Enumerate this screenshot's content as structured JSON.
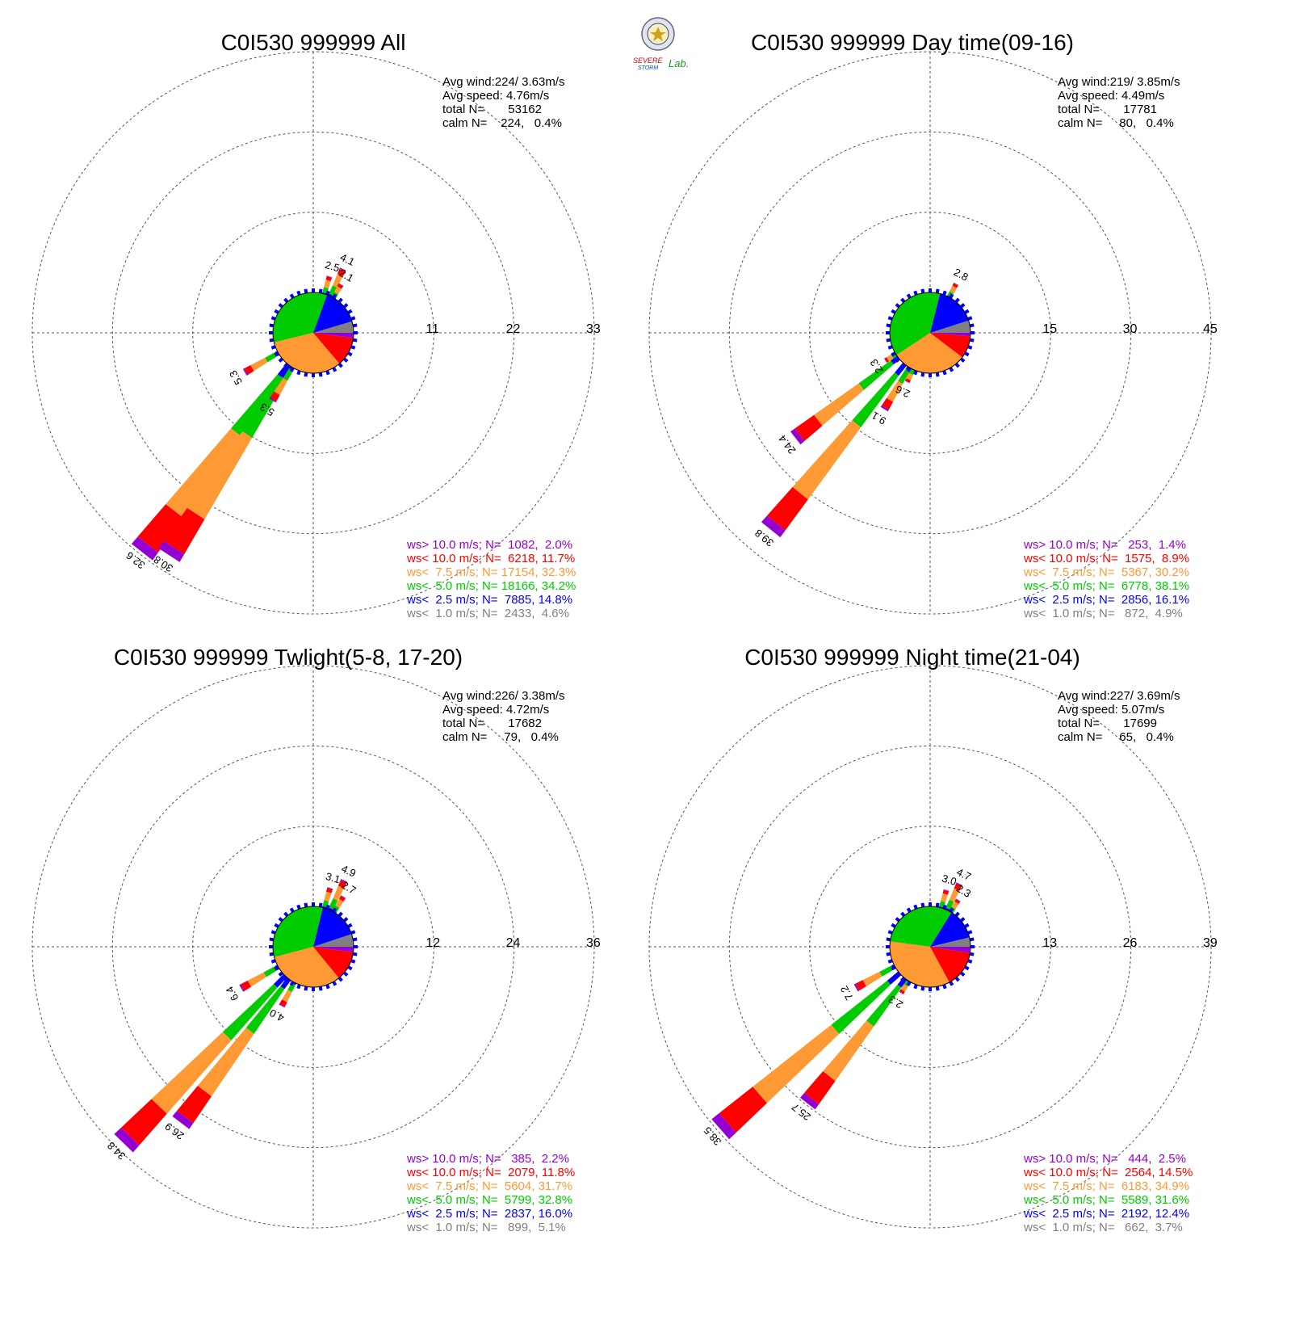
{
  "logo": {
    "text_severe": "SEVERE",
    "text_storm": "STORM",
    "text_lab": "Lab."
  },
  "colors": {
    "gt10": "#9400d3",
    "lt10": "#ff0000",
    "lt7_5": "#ff9933",
    "lt5": "#00cc00",
    "lt2_5": "#0000ff",
    "lt1": "#808080"
  },
  "chart_data": [
    {
      "type": "windrose",
      "title": "C0I530 999999 All",
      "ring_labels": [
        "11",
        "22",
        "33"
      ],
      "rmax": 33,
      "stats": [
        "Avg wind:224/ 3.63m/s",
        "Avg speed: 4.76m/s",
        "total N=       53162",
        "calm N=    224,   0.4%"
      ],
      "legend": [
        {
          "key": "gt10",
          "text": "ws> 10.0 m/s; N=  1082,  2.0%"
        },
        {
          "key": "lt10",
          "text": "ws< 10.0 m/s; N=  6218, 11.7%"
        },
        {
          "key": "lt7_5",
          "text": "ws<  7.5 m/s; N= 17154, 32.3%"
        },
        {
          "key": "lt5",
          "text": "ws<  5.0 m/s; N= 18166, 34.2%"
        },
        {
          "key": "lt2_5",
          "text": "ws<  2.5 m/s; N=  7885, 14.8%"
        },
        {
          "key": "lt1",
          "text": "ws<  1.0 m/s; N=  2433,  4.6%"
        }
      ],
      "pie": [
        4.6,
        14.8,
        34.2,
        32.3,
        11.7,
        2.0
      ],
      "petals": [
        {
          "dir": 218,
          "total": 32.6,
          "label": "32.6"
        },
        {
          "dir": 213,
          "total": 30.8,
          "label": "30.8"
        },
        {
          "dir": 240,
          "total": 5.3,
          "label": "5.3"
        },
        {
          "dir": 211,
          "total": 5.3,
          "label": "5.3"
        },
        {
          "dir": 25,
          "total": 4.1,
          "label": "4.1"
        },
        {
          "dir": 16,
          "total": 2.5,
          "label": "2.5"
        },
        {
          "dir": 30,
          "total": 2.1,
          "label": "2.1"
        }
      ]
    },
    {
      "type": "windrose",
      "title": "C0I530 999999 Day time(09-16)",
      "ring_labels": [
        "15",
        "30",
        "45"
      ],
      "rmax": 45,
      "stats": [
        "Avg wind:219/ 3.85m/s",
        "Avg speed: 4.49m/s",
        "total N=       17781",
        "calm N=     80,   0.4%"
      ],
      "legend": [
        {
          "key": "gt10",
          "text": "ws> 10.0 m/s; N=   253,  1.4%"
        },
        {
          "key": "lt10",
          "text": "ws< 10.0 m/s; N=  1575,  8.9%"
        },
        {
          "key": "lt7_5",
          "text": "ws<  7.5 m/s; N=  5367, 30.2%"
        },
        {
          "key": "lt5",
          "text": "ws<  5.0 m/s; N=  6778, 38.1%"
        },
        {
          "key": "lt2_5",
          "text": "ws<  2.5 m/s; N=  2856, 16.1%"
        },
        {
          "key": "lt1",
          "text": "ws<  1.0 m/s; N=   872,  4.9%"
        }
      ],
      "pie": [
        4.9,
        16.1,
        38.1,
        30.2,
        8.9,
        1.4
      ],
      "petals": [
        {
          "dir": 219,
          "total": 39.8,
          "label": "39.8"
        },
        {
          "dir": 232,
          "total": 24.4,
          "label": "24.4"
        },
        {
          "dir": 211,
          "total": 9.1,
          "label": "9.1"
        },
        {
          "dir": 238,
          "total": 2.3,
          "label": "2.3"
        },
        {
          "dir": 205,
          "total": 2.6,
          "label": "2.6"
        },
        {
          "dir": 28,
          "total": 2.8,
          "label": "2.8"
        }
      ]
    },
    {
      "type": "windrose",
      "title": "C0I530 999999 Twlight(5-8, 17-20)",
      "ring_labels": [
        "12",
        "24",
        "36"
      ],
      "rmax": 36,
      "stats": [
        "Avg wind:226/ 3.38m/s",
        "Avg speed: 4.72m/s",
        "total N=       17682",
        "calm N=     79,   0.4%"
      ],
      "legend": [
        {
          "key": "gt10",
          "text": "ws> 10.0 m/s; N=   385,  2.2%"
        },
        {
          "key": "lt10",
          "text": "ws< 10.0 m/s; N=  2079, 11.8%"
        },
        {
          "key": "lt7_5",
          "text": "ws<  7.5 m/s; N=  5604, 31.7%"
        },
        {
          "key": "lt5",
          "text": "ws<  5.0 m/s; N=  5799, 32.8%"
        },
        {
          "key": "lt2_5",
          "text": "ws<  2.5 m/s; N=  2837, 16.0%"
        },
        {
          "key": "lt1",
          "text": "ws<  1.0 m/s; N=   899,  5.1%"
        }
      ],
      "pie": [
        5.1,
        16.0,
        32.8,
        31.7,
        11.8,
        2.2
      ],
      "petals": [
        {
          "dir": 224,
          "total": 34.8,
          "label": "34.8"
        },
        {
          "dir": 217,
          "total": 26.9,
          "label": "26.9"
        },
        {
          "dir": 240,
          "total": 6.4,
          "label": "6.4"
        },
        {
          "dir": 208,
          "total": 4.0,
          "label": "4.0"
        },
        {
          "dir": 25,
          "total": 4.9,
          "label": "4.9"
        },
        {
          "dir": 16,
          "total": 3.1,
          "label": "3.1"
        },
        {
          "dir": 31,
          "total": 2.7,
          "label": "2.7"
        }
      ]
    },
    {
      "type": "windrose",
      "title": "C0I530 999999 Night time(21-04)",
      "ring_labels": [
        "13",
        "26",
        "39"
      ],
      "rmax": 39,
      "stats": [
        "Avg wind:227/ 3.69m/s",
        "Avg speed: 5.07m/s",
        "total N=       17699",
        "calm N=     65,   0.4%"
      ],
      "legend": [
        {
          "key": "gt10",
          "text": "ws> 10.0 m/s; N=   444,  2.5%"
        },
        {
          "key": "lt10",
          "text": "ws< 10.0 m/s; N=  2564, 14.5%"
        },
        {
          "key": "lt7_5",
          "text": "ws<  7.5 m/s; N=  6183, 34.9%"
        },
        {
          "key": "lt5",
          "text": "ws<  5.0 m/s; N=  5589, 31.6%"
        },
        {
          "key": "lt2_5",
          "text": "ws<  2.5 m/s; N=  2192, 12.4%"
        },
        {
          "key": "lt1",
          "text": "ws<  1.0 m/s; N=   662,  3.7%"
        }
      ],
      "pie": [
        3.7,
        12.4,
        31.6,
        34.9,
        14.5,
        2.5
      ],
      "petals": [
        {
          "dir": 229,
          "total": 38.5,
          "label": "38.5"
        },
        {
          "dir": 218,
          "total": 25.7,
          "label": "25.7"
        },
        {
          "dir": 241,
          "total": 7.2,
          "label": "7.2"
        },
        {
          "dir": 212,
          "total": 2.3,
          "label": "2.3"
        },
        {
          "dir": 25,
          "total": 4.7,
          "label": "4.7"
        },
        {
          "dir": 16,
          "total": 3.0,
          "label": "3.0"
        },
        {
          "dir": 31,
          "total": 2.3,
          "label": "2.3"
        }
      ]
    }
  ]
}
